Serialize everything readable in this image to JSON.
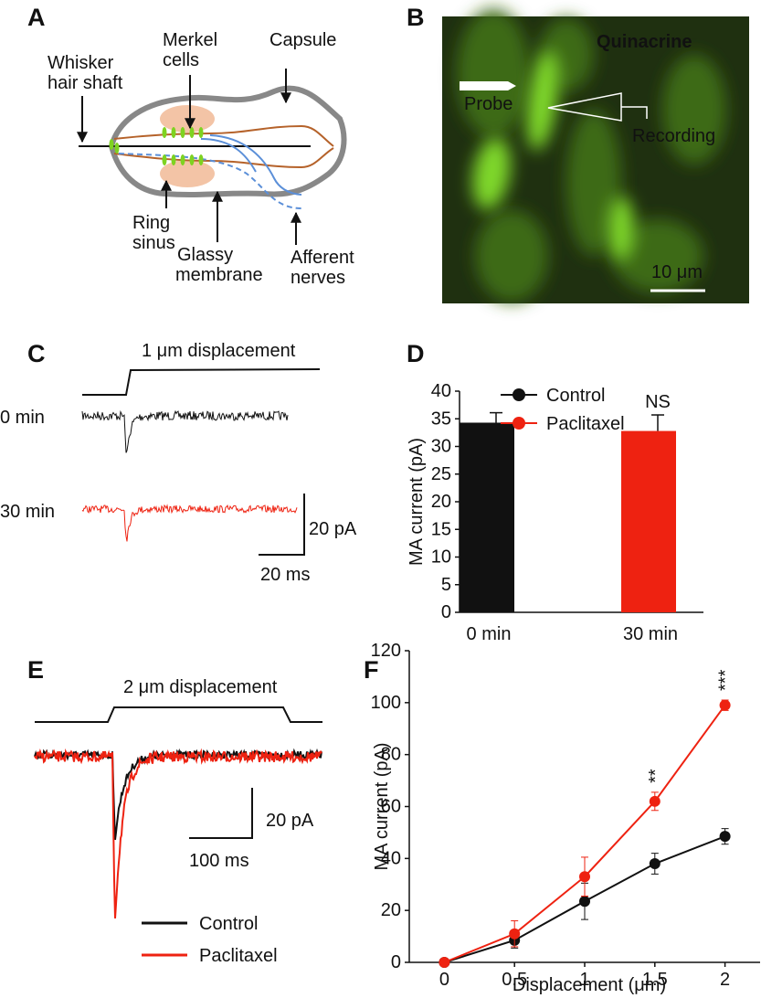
{
  "panels": {
    "A": {
      "label": "A",
      "whisker": [
        "Whisker",
        "hair shaft"
      ],
      "merkel": [
        "Merkel",
        "cells"
      ],
      "capsule": "Capsule",
      "ring_sinus": [
        "Ring",
        "sinus"
      ],
      "glassy": [
        "Glassy",
        "membrane"
      ],
      "afferent": [
        "Afferent",
        "nerves"
      ]
    },
    "B": {
      "label": "B",
      "stain": "Quinacrine",
      "probe": "Probe",
      "recording": "Recording",
      "scale": "10 μm"
    },
    "C": {
      "label": "C",
      "stimulus": "1 μm displacement",
      "row1": "0 min",
      "row2": "30 min",
      "scale_y": "20 pA",
      "scale_x": "20 ms"
    },
    "D": {
      "label": "D"
    },
    "E": {
      "label": "E",
      "stimulus": "2 μm displacement",
      "scale_y": "20 pA",
      "scale_x": "100 ms",
      "legend": [
        "Control",
        "Paclitaxel"
      ]
    },
    "F": {
      "label": "F"
    }
  },
  "chart_data": [
    {
      "type": "bar",
      "y_label": "MA current (pA)",
      "categories": [
        "0 min",
        "30 min"
      ],
      "values": [
        34.3,
        32.8
      ],
      "errors": [
        1.8,
        2.9
      ],
      "colors": [
        "#111111",
        "#ee2211"
      ],
      "ylim": [
        0,
        40
      ],
      "yticks": [
        0,
        5,
        10,
        15,
        20,
        25,
        30,
        35,
        40
      ],
      "annotations": [
        {
          "text": "NS",
          "category": "30 min"
        }
      ]
    },
    {
      "type": "line",
      "x_label": "Displacement (μm)",
      "y_label": "MA current (pA)",
      "x": [
        0,
        0.5,
        1,
        1.5,
        2
      ],
      "series": [
        {
          "name": "Control",
          "color": "#111111",
          "values": [
            0,
            8.5,
            23.5,
            38,
            48.5
          ],
          "errors": [
            0,
            3,
            7,
            4,
            3
          ]
        },
        {
          "name": "Paclitaxel",
          "color": "#ee2211",
          "values": [
            0,
            11,
            33,
            62,
            99
          ],
          "errors": [
            0,
            5,
            7.5,
            3.5,
            2
          ]
        }
      ],
      "xlim": [
        -0.25,
        2.25
      ],
      "ylim": [
        0,
        120
      ],
      "xticks": [
        0,
        0.5,
        1,
        1.5,
        2
      ],
      "yticks": [
        0,
        20,
        40,
        60,
        80,
        100,
        120
      ],
      "legend": "upper left",
      "annotations": [
        {
          "text": "**",
          "x": 1.5
        },
        {
          "text": "***",
          "x": 2
        }
      ]
    }
  ]
}
